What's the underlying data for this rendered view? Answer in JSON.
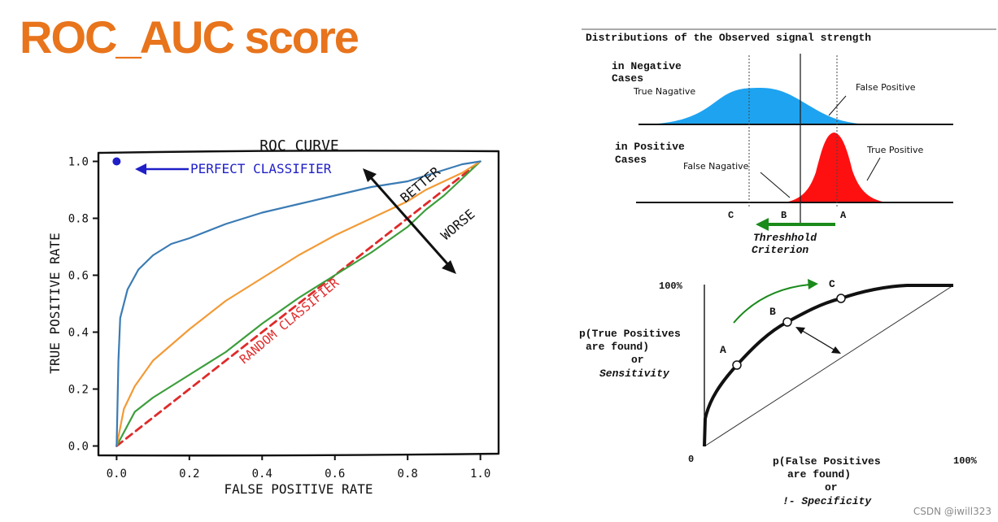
{
  "slide": {
    "title": "ROC_AUC score",
    "watermark": "CSDN @iwill323"
  },
  "colors": {
    "title": "#e8741c",
    "blue_curve": "#3a7bb4",
    "orange_curve": "#f39a36",
    "green_curve": "#3c9e3c",
    "random": "#e02a2a",
    "perfect": "#1f1fc8",
    "negative_fill": "#1ea3f0",
    "positive_fill": "#ff1010",
    "criterion": "#1a8a1a"
  },
  "chart_data": [
    {
      "type": "line",
      "title": "ROC CURVE",
      "xlabel": "FALSE POSITIVE RATE",
      "ylabel": "TRUE POSITIVE RATE",
      "xlim": [
        -0.05,
        1.05
      ],
      "ylim": [
        -0.03,
        1.03
      ],
      "xticks": [
        "0.0",
        "0.2",
        "0.4",
        "0.6",
        "0.8",
        "1.0"
      ],
      "yticks": [
        "0.0",
        "0.2",
        "0.4",
        "0.6",
        "0.8",
        "1.0"
      ],
      "series": [
        {
          "color": "blue_curve",
          "x": [
            0,
            0.005,
            0.01,
            0.03,
            0.06,
            0.1,
            0.15,
            0.2,
            0.3,
            0.4,
            0.5,
            0.6,
            0.7,
            0.8,
            0.85,
            0.9,
            0.95,
            1.0
          ],
          "y": [
            0,
            0.3,
            0.45,
            0.55,
            0.62,
            0.67,
            0.71,
            0.73,
            0.78,
            0.82,
            0.85,
            0.88,
            0.91,
            0.93,
            0.95,
            0.97,
            0.99,
            1.0
          ]
        },
        {
          "color": "orange_curve",
          "x": [
            0,
            0.02,
            0.05,
            0.1,
            0.2,
            0.3,
            0.4,
            0.5,
            0.6,
            0.7,
            0.8,
            0.85,
            0.9,
            0.95,
            1.0
          ],
          "y": [
            0,
            0.13,
            0.21,
            0.3,
            0.41,
            0.51,
            0.59,
            0.67,
            0.74,
            0.8,
            0.86,
            0.9,
            0.93,
            0.96,
            1.0
          ]
        },
        {
          "color": "green_curve",
          "x": [
            0,
            0.05,
            0.1,
            0.2,
            0.3,
            0.4,
            0.5,
            0.6,
            0.7,
            0.8,
            0.85,
            0.9,
            0.95,
            1.0
          ],
          "y": [
            0,
            0.12,
            0.17,
            0.25,
            0.33,
            0.43,
            0.52,
            0.6,
            0.68,
            0.77,
            0.83,
            0.88,
            0.94,
            1.0
          ]
        },
        {
          "color": "random",
          "dashed": true,
          "x": [
            0,
            1
          ],
          "y": [
            0,
            1
          ]
        }
      ],
      "perfect_point": {
        "x": 0,
        "y": 1
      },
      "annotations": {
        "perfect": "PERFECT CLASSIFIER",
        "random": "RANDOM CLASSIFIER",
        "better": "BETTER",
        "worse": "WORSE"
      },
      "grid": false
    },
    {
      "type": "area",
      "title": "Distributions of the Observed signal strength",
      "negative_cases": "in Negative Cases",
      "positive_cases": "in Positive Cases",
      "labels": {
        "true_negative": "True Nagative",
        "false_positive": "False Positive",
        "false_negative": "False Nagative",
        "true_positive": "True Positive"
      },
      "points": [
        "C",
        "B",
        "A"
      ],
      "criterion": "Threshhold Criterion"
    },
    {
      "type": "line",
      "ytick_top": "100%",
      "xtick_right": "100%",
      "origin": "0",
      "ylabel": [
        "p(True Positives",
        "are found)",
        "or",
        "Sensitivity"
      ],
      "xlabel": [
        "p(False Positives",
        "are found)",
        "or",
        "!- Specificity"
      ],
      "points": [
        "A",
        "B",
        "C"
      ]
    }
  ]
}
